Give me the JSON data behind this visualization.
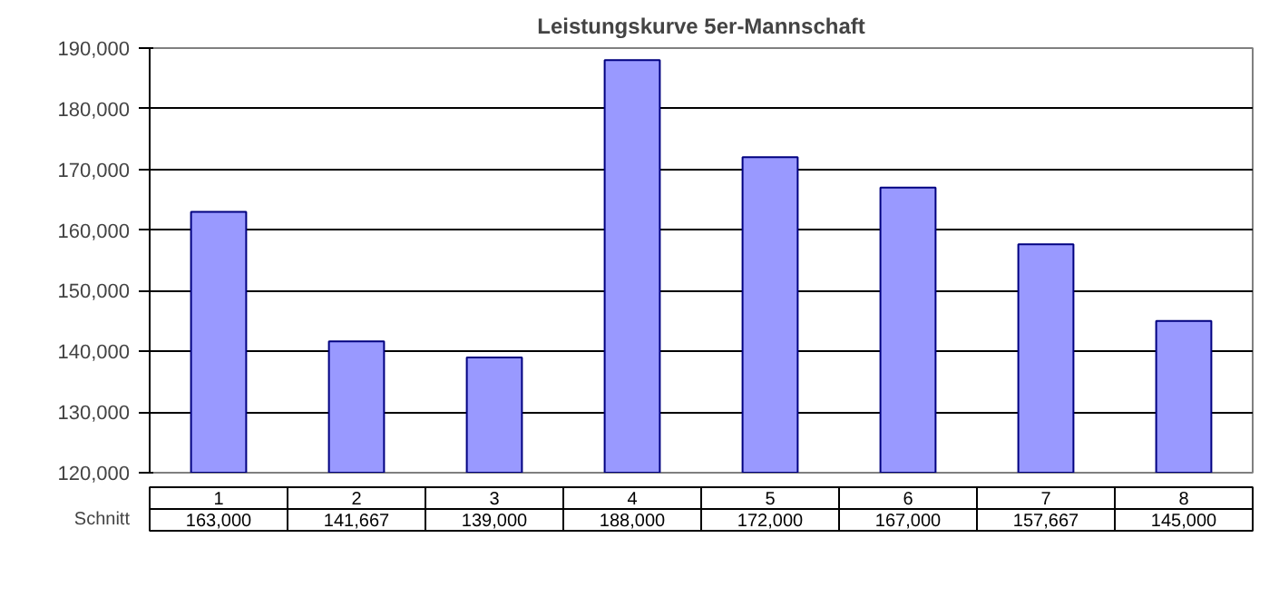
{
  "chart_data": {
    "type": "bar",
    "title": "Leistungskurve 5er-Mannschaft",
    "categories": [
      "1",
      "2",
      "3",
      "4",
      "5",
      "6",
      "7",
      "8"
    ],
    "series": [
      {
        "name": "Schnitt",
        "color": "#9999ff",
        "values": [
          163000,
          141667,
          139000,
          188000,
          172000,
          167000,
          157667,
          145000
        ],
        "value_labels": [
          "163,000",
          "141,667",
          "139,000",
          "188,000",
          "172,000",
          "167,000",
          "157,667",
          "145,000"
        ]
      }
    ],
    "ylim": [
      120000,
      190000
    ],
    "yticks": [
      {
        "value": 120000,
        "label": "120,000"
      },
      {
        "value": 130000,
        "label": "130,000"
      },
      {
        "value": 140000,
        "label": "140,000"
      },
      {
        "value": 150000,
        "label": "150,000"
      },
      {
        "value": 160000,
        "label": "160,000"
      },
      {
        "value": 170000,
        "label": "170,000"
      },
      {
        "value": 180000,
        "label": "180,000"
      },
      {
        "value": 190000,
        "label": "190,000"
      }
    ],
    "grid": "y"
  }
}
